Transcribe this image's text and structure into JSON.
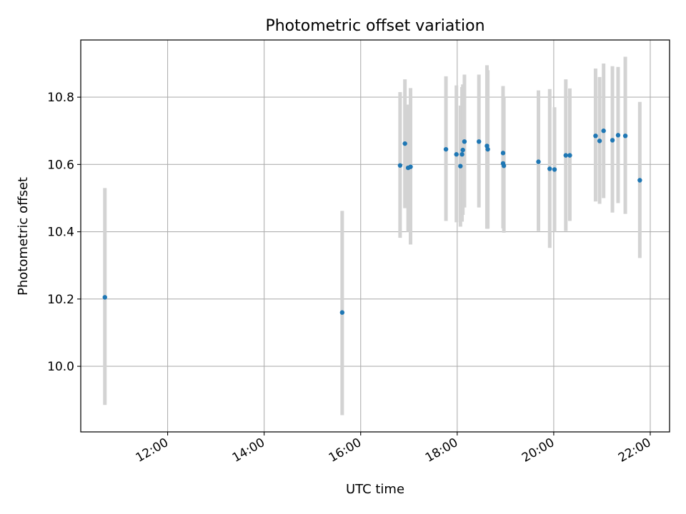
{
  "chart_data": {
    "type": "scatter",
    "title": "Photometric offset variation",
    "xlabel": "UTC time",
    "ylabel": "Photometric offset",
    "x_unit": "hours-of-day",
    "xlim": [
      "10:12",
      "22:24"
    ],
    "ylim": [
      9.805,
      10.97
    ],
    "x_ticks": [
      "12:00",
      "14:00",
      "16:00",
      "18:00",
      "20:00",
      "22:00"
    ],
    "y_ticks": [
      "10.0",
      "10.2",
      "10.4",
      "10.6",
      "10.8"
    ],
    "grid": true,
    "point_color": "#1f77b4",
    "errorbar_color": "#d3d3d3",
    "points": [
      {
        "t": "10:42",
        "y": 10.205,
        "low": 9.885,
        "high": 10.53
      },
      {
        "t": "15:37",
        "y": 10.16,
        "low": 9.855,
        "high": 10.462
      },
      {
        "t": "16:49",
        "y": 10.597,
        "low": 10.382,
        "high": 10.815
      },
      {
        "t": "16:55",
        "y": 10.662,
        "low": 10.47,
        "high": 10.853
      },
      {
        "t": "16:59",
        "y": 10.59,
        "low": 10.4,
        "high": 10.778
      },
      {
        "t": "17:02",
        "y": 10.593,
        "low": 10.362,
        "high": 10.827
      },
      {
        "t": "17:46",
        "y": 10.645,
        "low": 10.432,
        "high": 10.862
      },
      {
        "t": "17:59",
        "y": 10.63,
        "low": 10.428,
        "high": 10.835
      },
      {
        "t": "18:04",
        "y": 10.595,
        "low": 10.415,
        "high": 10.775
      },
      {
        "t": "18:06",
        "y": 10.63,
        "low": 10.43,
        "high": 10.83
      },
      {
        "t": "18:07",
        "y": 10.643,
        "low": 10.45,
        "high": 10.838
      },
      {
        "t": "18:09",
        "y": 10.668,
        "low": 10.472,
        "high": 10.867
      },
      {
        "t": "18:27",
        "y": 10.668,
        "low": 10.472,
        "high": 10.867
      },
      {
        "t": "18:37",
        "y": 10.655,
        "low": 10.409,
        "high": 10.895
      },
      {
        "t": "18:38",
        "y": 10.645,
        "low": 10.409,
        "high": 10.88
      },
      {
        "t": "18:57",
        "y": 10.634,
        "low": 10.438,
        "high": 10.833
      },
      {
        "t": "18:57",
        "y": 10.603,
        "low": 10.41,
        "high": 10.8
      },
      {
        "t": "18:58",
        "y": 10.596,
        "low": 10.397,
        "high": 10.8
      },
      {
        "t": "19:41",
        "y": 10.608,
        "low": 10.402,
        "high": 10.82
      },
      {
        "t": "19:55",
        "y": 10.587,
        "low": 10.352,
        "high": 10.824
      },
      {
        "t": "20:01",
        "y": 10.585,
        "low": 10.4,
        "high": 10.77
      },
      {
        "t": "20:15",
        "y": 10.627,
        "low": 10.402,
        "high": 10.853
      },
      {
        "t": "20:20",
        "y": 10.627,
        "low": 10.432,
        "high": 10.826
      },
      {
        "t": "20:52",
        "y": 10.685,
        "low": 10.49,
        "high": 10.885
      },
      {
        "t": "20:57",
        "y": 10.67,
        "low": 10.483,
        "high": 10.86
      },
      {
        "t": "21:02",
        "y": 10.7,
        "low": 10.5,
        "high": 10.9
      },
      {
        "t": "21:13",
        "y": 10.672,
        "low": 10.457,
        "high": 10.892
      },
      {
        "t": "21:20",
        "y": 10.687,
        "low": 10.485,
        "high": 10.89
      },
      {
        "t": "21:29",
        "y": 10.685,
        "low": 10.453,
        "high": 10.92
      },
      {
        "t": "21:47",
        "y": 10.553,
        "low": 10.322,
        "high": 10.786
      }
    ]
  }
}
